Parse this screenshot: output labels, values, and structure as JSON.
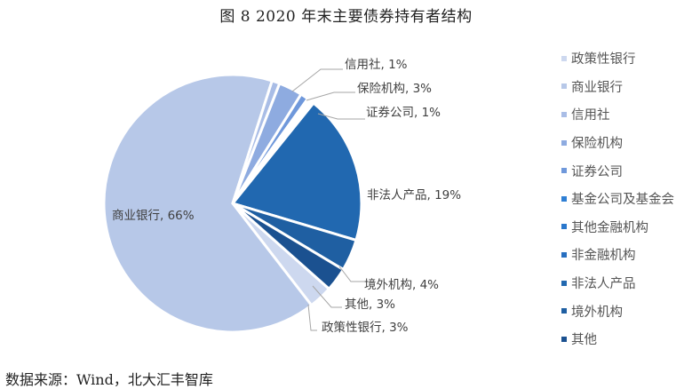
{
  "title": "图 8   2020 年末主要债券持有者结构",
  "source": "数据来源：Wind，北大汇丰智库",
  "chart_data": {
    "type": "pie",
    "title": "2020 年末主要债券持有者结构",
    "start_angle_deg": 131.6,
    "direction": "clockwise",
    "legend_position": "right",
    "slices": [
      {
        "name": "政策性银行",
        "value": 3,
        "color": "#cdd8ef",
        "label": "政策性银行, 3%"
      },
      {
        "name": "商业银行",
        "value": 66,
        "color": "#b7c8e8",
        "label": "商业银行, 66%"
      },
      {
        "name": "信用社",
        "value": 1,
        "color": "#a9bde6",
        "label": "信用社, 1%"
      },
      {
        "name": "保险机构",
        "value": 3,
        "color": "#8eabe0",
        "label": "保险机构, 3%"
      },
      {
        "name": "证券公司",
        "value": 1,
        "color": "#6f98db",
        "label": "证券公司, 1%"
      },
      {
        "name": "基金公司及基金会",
        "value": 0.3,
        "color": "#2f7fd4",
        "label": ""
      },
      {
        "name": "其他金融机构",
        "value": 0.3,
        "color": "#2a77cc",
        "label": ""
      },
      {
        "name": "非金融机构",
        "value": 0.3,
        "color": "#276fc0",
        "label": ""
      },
      {
        "name": "非法人产品",
        "value": 19,
        "color": "#2168b0",
        "label": "非法人产品, 19%"
      },
      {
        "name": "境外机构",
        "value": 4,
        "color": "#1f5fa2",
        "label": "境外机构, 4%"
      },
      {
        "name": "其他",
        "value": 3,
        "color": "#1b5190",
        "label": "其他, 3%"
      }
    ]
  },
  "legend": [
    {
      "label": "政策性银行",
      "color": "#cdd8ef"
    },
    {
      "label": "商业银行",
      "color": "#b7c8e8"
    },
    {
      "label": "信用社",
      "color": "#a9bde6"
    },
    {
      "label": "保险机构",
      "color": "#8eabe0"
    },
    {
      "label": "证券公司",
      "color": "#6f98db"
    },
    {
      "label": "基金公司及基金会",
      "color": "#2f7fd4"
    },
    {
      "label": "其他金融机构",
      "color": "#2a77cc"
    },
    {
      "label": "非金融机构",
      "color": "#276fc0"
    },
    {
      "label": "非法人产品",
      "color": "#2168b0"
    },
    {
      "label": "境外机构",
      "color": "#1f5fa2"
    },
    {
      "label": "其他",
      "color": "#1b5190"
    }
  ],
  "labels": {
    "xinyongshe": "信用社, 1%",
    "baoxian": "保险机构, 3%",
    "zhengquan": "证券公司, 1%",
    "feifaren": "非法人产品, 19%",
    "jingwai": "境外机构, 4%",
    "qita": "其他, 3%",
    "zhengce": "政策性银行, 3%",
    "shangye": "商业银行, 66%"
  }
}
